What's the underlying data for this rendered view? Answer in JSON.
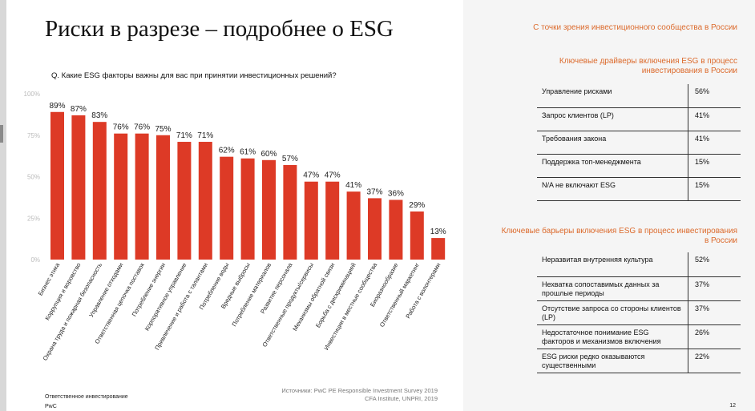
{
  "slide": {
    "title": "Риски в разрезе – подробнее о ESG",
    "question": "Q. Какие ESG факторы важны для вас при принятии инвестиционных решений?",
    "sources_line1": "Источники: PwC PE Responsible Investment Survey 2019",
    "sources_line2": "CFA Institute, UNPRI, 2019",
    "footer_line1": "Ответственное инвестирование",
    "footer_line2": "PwC",
    "page_number": "12"
  },
  "chart_data": {
    "type": "bar",
    "categories": [
      "Бизнес этика",
      "Коррупция и воровство",
      "Охрана труда и пожарная безопасность",
      "Управление отходами",
      "Ответственная цепочка поставок",
      "Потребление энергии",
      "Корпоративное управление",
      "Привлечение и работа с талантами",
      "Потребление воды",
      "Вредные выбросы",
      "Потребление материалов",
      "Развитие персонала",
      "Ответственные продукты/сервисы",
      "Механизмы обратной связи",
      "Борьба с дискриминацией",
      "Инвестиции в местные сообщества",
      "Биоразнообразие",
      "Ответственный маркетинг",
      "Работа с волонтерами"
    ],
    "values": [
      89,
      87,
      83,
      76,
      76,
      75,
      71,
      71,
      62,
      61,
      60,
      57,
      47,
      47,
      41,
      37,
      36,
      29,
      13
    ],
    "data_labels": [
      "89%",
      "87%",
      "83%",
      "76%",
      "76%",
      "75%",
      "71%",
      "71%",
      "62%",
      "61%",
      "60%",
      "57%",
      "47%",
      "47%",
      "41%",
      "37%",
      "36%",
      "29%",
      "13%"
    ],
    "yticks": [
      0,
      25,
      50,
      75,
      100
    ],
    "ytick_labels": [
      "0%",
      "25%",
      "50%",
      "75%",
      "100%"
    ],
    "ylim": [
      0,
      100
    ],
    "bar_color": "#dd3a26",
    "grid": false
  },
  "right_panel": {
    "title": "С точки зрения инвестиционного сообщества в России",
    "drivers_title": "Ключевые драйверы включения ESG в процесс инвестирования в России",
    "drivers": [
      {
        "label": "Управление рисками",
        "value": "56%"
      },
      {
        "label": "Запрос клиентов (LP)",
        "value": "41%"
      },
      {
        "label": "Требования закона",
        "value": "41%"
      },
      {
        "label": "Поддержка топ-менеджмента",
        "value": "15%"
      },
      {
        "label": "N/A не включают ESG",
        "value": "15%"
      }
    ],
    "barriers_title": "Ключевые барьеры включения ESG в процесс инвестирования в России",
    "barriers": [
      {
        "label": "Неразвитая внутренняя культура",
        "value": "52%"
      },
      {
        "label": "Нехватка сопоставимых данных за прошлые периоды",
        "value": "37%"
      },
      {
        "label": "Отсутствие запроса со стороны клиентов (LP)",
        "value": "37%"
      },
      {
        "label": "Недостаточное понимание ESG факторов и механизмов включения",
        "value": "26%"
      },
      {
        "label": "ESG риски редко оказываются существенными",
        "value": "22%"
      }
    ],
    "accent_color": "#dc6a2c"
  }
}
